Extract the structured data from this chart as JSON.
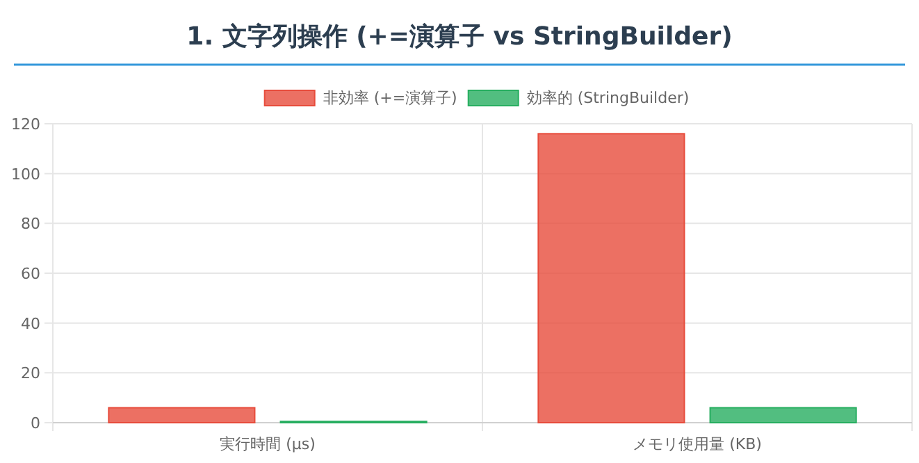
{
  "chart_data": {
    "type": "bar",
    "title": "1. 文字列操作 (+=演算子 vs StringBuilder)",
    "categories": [
      "実行時間 (µs)",
      "メモリ使用量 (KB)"
    ],
    "series": [
      {
        "name": "非効率 (+=演算子)",
        "color": "#e74c3c",
        "values": [
          6,
          116
        ]
      },
      {
        "name": "効率的 (StringBuilder)",
        "color": "#27ae60",
        "values": [
          0.5,
          6
        ]
      }
    ],
    "ylim": [
      0,
      120
    ],
    "yticks": [
      0,
      20,
      40,
      60,
      80,
      100,
      120
    ],
    "grid": true,
    "legend": "top"
  }
}
